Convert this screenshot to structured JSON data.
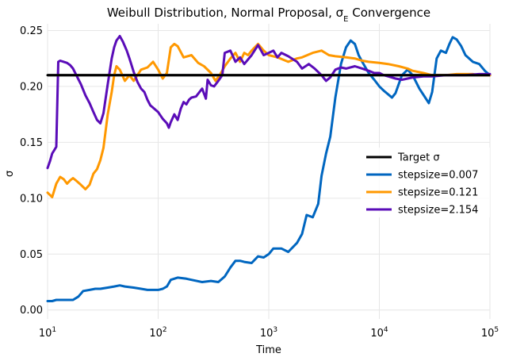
{
  "chart_data": {
    "type": "line",
    "title": "Weibull Distribution, Normal Proposal, σ",
    "title_sub": "E",
    "title_tail": " Convergence",
    "xlabel": "Time",
    "ylabel": "σ",
    "xscale": "log",
    "xlim": [
      10,
      100000
    ],
    "ylim": [
      -0.008,
      0.256
    ],
    "grid": true,
    "legend_position": "center-right",
    "x_ticks": [
      {
        "value": 10,
        "base": "10",
        "exp": "1"
      },
      {
        "value": 100,
        "base": "10",
        "exp": "2"
      },
      {
        "value": 1000,
        "base": "10",
        "exp": "3"
      },
      {
        "value": 10000,
        "base": "10",
        "exp": "4"
      },
      {
        "value": 100000,
        "base": "10",
        "exp": "5"
      }
    ],
    "y_ticks": [
      {
        "value": 0.0,
        "label": "0.00"
      },
      {
        "value": 0.05,
        "label": "0.05"
      },
      {
        "value": 0.1,
        "label": "0.10"
      },
      {
        "value": 0.15,
        "label": "0.15"
      },
      {
        "value": 0.2,
        "label": "0.20"
      },
      {
        "value": 0.25,
        "label": "0.25"
      }
    ],
    "series": [
      {
        "name": "Target σ",
        "color": "#000000",
        "points": [
          [
            10,
            0.21
          ],
          [
            100000,
            0.21
          ]
        ]
      },
      {
        "name": "stepsize=0.007",
        "color": "#0066c0",
        "points": [
          [
            10,
            0.008
          ],
          [
            11,
            0.008
          ],
          [
            12,
            0.009
          ],
          [
            13,
            0.009
          ],
          [
            15,
            0.009
          ],
          [
            17,
            0.009
          ],
          [
            19,
            0.012
          ],
          [
            21,
            0.017
          ],
          [
            24,
            0.018
          ],
          [
            27,
            0.019
          ],
          [
            30,
            0.019
          ],
          [
            35,
            0.02
          ],
          [
            40,
            0.021
          ],
          [
            45,
            0.022
          ],
          [
            50,
            0.021
          ],
          [
            60,
            0.02
          ],
          [
            70,
            0.019
          ],
          [
            80,
            0.018
          ],
          [
            90,
            0.018
          ],
          [
            100,
            0.018
          ],
          [
            110,
            0.019
          ],
          [
            120,
            0.021
          ],
          [
            130,
            0.027
          ],
          [
            150,
            0.029
          ],
          [
            180,
            0.028
          ],
          [
            200,
            0.027
          ],
          [
            250,
            0.025
          ],
          [
            300,
            0.026
          ],
          [
            350,
            0.025
          ],
          [
            400,
            0.03
          ],
          [
            450,
            0.038
          ],
          [
            500,
            0.044
          ],
          [
            550,
            0.044
          ],
          [
            600,
            0.043
          ],
          [
            700,
            0.042
          ],
          [
            800,
            0.048
          ],
          [
            900,
            0.047
          ],
          [
            1000,
            0.05
          ],
          [
            1100,
            0.055
          ],
          [
            1300,
            0.055
          ],
          [
            1500,
            0.052
          ],
          [
            1800,
            0.06
          ],
          [
            2000,
            0.068
          ],
          [
            2200,
            0.085
          ],
          [
            2500,
            0.083
          ],
          [
            2800,
            0.095
          ],
          [
            3000,
            0.12
          ],
          [
            3300,
            0.14
          ],
          [
            3600,
            0.155
          ],
          [
            4000,
            0.19
          ],
          [
            4500,
            0.22
          ],
          [
            5000,
            0.235
          ],
          [
            5500,
            0.241
          ],
          [
            6000,
            0.238
          ],
          [
            6500,
            0.228
          ],
          [
            7000,
            0.222
          ],
          [
            8000,
            0.212
          ],
          [
            9000,
            0.206
          ],
          [
            10000,
            0.2
          ],
          [
            11000,
            0.196
          ],
          [
            12000,
            0.193
          ],
          [
            13000,
            0.19
          ],
          [
            14000,
            0.194
          ],
          [
            16000,
            0.21
          ],
          [
            18000,
            0.215
          ],
          [
            20000,
            0.21
          ],
          [
            23000,
            0.198
          ],
          [
            26000,
            0.19
          ],
          [
            28000,
            0.185
          ],
          [
            30000,
            0.195
          ],
          [
            33000,
            0.225
          ],
          [
            36000,
            0.232
          ],
          [
            40000,
            0.23
          ],
          [
            43000,
            0.238
          ],
          [
            46000,
            0.244
          ],
          [
            50000,
            0.242
          ],
          [
            55000,
            0.236
          ],
          [
            60000,
            0.228
          ],
          [
            70000,
            0.222
          ],
          [
            80000,
            0.22
          ],
          [
            90000,
            0.214
          ],
          [
            100000,
            0.21
          ]
        ]
      },
      {
        "name": "stepsize=0.121",
        "color": "#ff9800",
        "points": [
          [
            10,
            0.105
          ],
          [
            11,
            0.101
          ],
          [
            12,
            0.113
          ],
          [
            13,
            0.119
          ],
          [
            14,
            0.117
          ],
          [
            15,
            0.113
          ],
          [
            16,
            0.116
          ],
          [
            17,
            0.118
          ],
          [
            18,
            0.116
          ],
          [
            20,
            0.112
          ],
          [
            22,
            0.108
          ],
          [
            24,
            0.112
          ],
          [
            26,
            0.122
          ],
          [
            28,
            0.126
          ],
          [
            30,
            0.134
          ],
          [
            32,
            0.145
          ],
          [
            35,
            0.175
          ],
          [
            38,
            0.195
          ],
          [
            40,
            0.21
          ],
          [
            42,
            0.218
          ],
          [
            45,
            0.215
          ],
          [
            50,
            0.205
          ],
          [
            55,
            0.21
          ],
          [
            60,
            0.205
          ],
          [
            70,
            0.215
          ],
          [
            80,
            0.217
          ],
          [
            90,
            0.222
          ],
          [
            100,
            0.215
          ],
          [
            110,
            0.207
          ],
          [
            120,
            0.212
          ],
          [
            130,
            0.235
          ],
          [
            140,
            0.238
          ],
          [
            150,
            0.236
          ],
          [
            170,
            0.226
          ],
          [
            200,
            0.228
          ],
          [
            230,
            0.221
          ],
          [
            260,
            0.218
          ],
          [
            300,
            0.212
          ],
          [
            330,
            0.205
          ],
          [
            360,
            0.21
          ],
          [
            400,
            0.218
          ],
          [
            450,
            0.225
          ],
          [
            500,
            0.23
          ],
          [
            550,
            0.222
          ],
          [
            600,
            0.23
          ],
          [
            650,
            0.228
          ],
          [
            700,
            0.232
          ],
          [
            800,
            0.238
          ],
          [
            900,
            0.232
          ],
          [
            1000,
            0.228
          ],
          [
            1200,
            0.226
          ],
          [
            1500,
            0.222
          ],
          [
            1800,
            0.225
          ],
          [
            2000,
            0.226
          ],
          [
            2500,
            0.23
          ],
          [
            3000,
            0.232
          ],
          [
            3500,
            0.228
          ],
          [
            4000,
            0.227
          ],
          [
            5000,
            0.226
          ],
          [
            6000,
            0.225
          ],
          [
            7000,
            0.223
          ],
          [
            8000,
            0.222
          ],
          [
            10000,
            0.221
          ],
          [
            12000,
            0.22
          ],
          [
            15000,
            0.218
          ],
          [
            18000,
            0.216
          ],
          [
            20000,
            0.214
          ],
          [
            25000,
            0.212
          ],
          [
            30000,
            0.21
          ],
          [
            40000,
            0.21
          ],
          [
            50000,
            0.211
          ],
          [
            60000,
            0.211
          ],
          [
            70000,
            0.211
          ],
          [
            80000,
            0.21
          ],
          [
            100000,
            0.21
          ]
        ]
      },
      {
        "name": "stepsize=2.154",
        "color": "#5a0cb8",
        "points": [
          [
            10,
            0.127
          ],
          [
            10.5,
            0.133
          ],
          [
            11,
            0.14
          ],
          [
            11.5,
            0.143
          ],
          [
            12,
            0.146
          ],
          [
            12.5,
            0.222
          ],
          [
            13,
            0.223
          ],
          [
            14,
            0.222
          ],
          [
            15,
            0.221
          ],
          [
            16,
            0.219
          ],
          [
            17,
            0.216
          ],
          [
            18,
            0.211
          ],
          [
            20,
            0.202
          ],
          [
            22,
            0.192
          ],
          [
            24,
            0.185
          ],
          [
            26,
            0.177
          ],
          [
            28,
            0.17
          ],
          [
            30,
            0.167
          ],
          [
            32,
            0.176
          ],
          [
            35,
            0.202
          ],
          [
            38,
            0.225
          ],
          [
            40,
            0.235
          ],
          [
            42,
            0.241
          ],
          [
            45,
            0.245
          ],
          [
            48,
            0.24
          ],
          [
            52,
            0.232
          ],
          [
            55,
            0.225
          ],
          [
            60,
            0.213
          ],
          [
            65,
            0.204
          ],
          [
            70,
            0.198
          ],
          [
            75,
            0.195
          ],
          [
            80,
            0.188
          ],
          [
            85,
            0.183
          ],
          [
            90,
            0.181
          ],
          [
            100,
            0.177
          ],
          [
            110,
            0.171
          ],
          [
            120,
            0.167
          ],
          [
            125,
            0.163
          ],
          [
            130,
            0.168
          ],
          [
            140,
            0.175
          ],
          [
            150,
            0.17
          ],
          [
            160,
            0.18
          ],
          [
            170,
            0.186
          ],
          [
            180,
            0.184
          ],
          [
            190,
            0.188
          ],
          [
            200,
            0.19
          ],
          [
            220,
            0.191
          ],
          [
            250,
            0.198
          ],
          [
            270,
            0.189
          ],
          [
            280,
            0.206
          ],
          [
            300,
            0.201
          ],
          [
            320,
            0.2
          ],
          [
            350,
            0.205
          ],
          [
            380,
            0.21
          ],
          [
            400,
            0.23
          ],
          [
            450,
            0.232
          ],
          [
            500,
            0.222
          ],
          [
            550,
            0.226
          ],
          [
            600,
            0.22
          ],
          [
            700,
            0.228
          ],
          [
            800,
            0.237
          ],
          [
            900,
            0.228
          ],
          [
            1000,
            0.23
          ],
          [
            1100,
            0.232
          ],
          [
            1200,
            0.226
          ],
          [
            1300,
            0.23
          ],
          [
            1500,
            0.227
          ],
          [
            1800,
            0.222
          ],
          [
            2000,
            0.216
          ],
          [
            2300,
            0.22
          ],
          [
            2600,
            0.216
          ],
          [
            3000,
            0.21
          ],
          [
            3300,
            0.205
          ],
          [
            3600,
            0.208
          ],
          [
            4000,
            0.215
          ],
          [
            4500,
            0.217
          ],
          [
            5000,
            0.216
          ],
          [
            6000,
            0.218
          ],
          [
            7000,
            0.216
          ],
          [
            8000,
            0.214
          ],
          [
            9000,
            0.212
          ],
          [
            10000,
            0.212
          ],
          [
            11000,
            0.21
          ],
          [
            12000,
            0.209
          ],
          [
            14000,
            0.207
          ],
          [
            16000,
            0.206
          ],
          [
            18000,
            0.207
          ],
          [
            20000,
            0.208
          ],
          [
            25000,
            0.209
          ],
          [
            30000,
            0.209
          ],
          [
            40000,
            0.21
          ],
          [
            50000,
            0.21
          ],
          [
            60000,
            0.21
          ],
          [
            80000,
            0.211
          ],
          [
            100000,
            0.211
          ]
        ]
      }
    ]
  }
}
